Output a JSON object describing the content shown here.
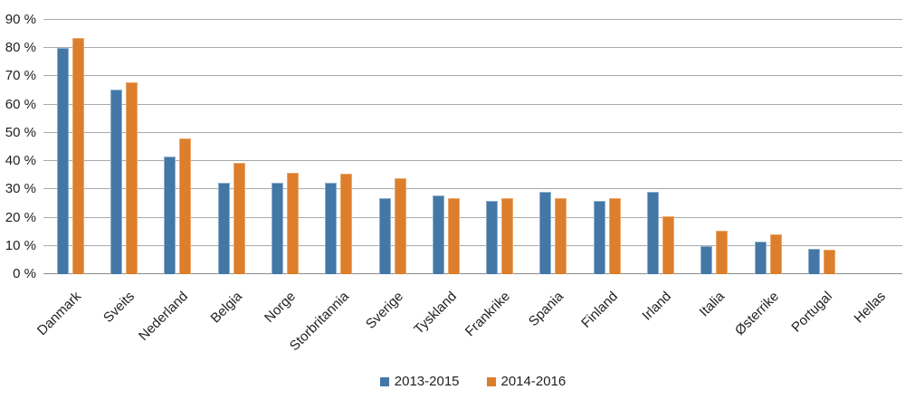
{
  "chart_data": {
    "type": "bar",
    "title": "",
    "xlabel": "",
    "ylabel": "",
    "categories": [
      "Danmark",
      "Sveits",
      "Nederland",
      "Belgia",
      "Norge",
      "Storbritannia",
      "Sverige",
      "Tyskland",
      "Frankrike",
      "Spania",
      "Finland",
      "Irland",
      "Italia",
      "Østerrike",
      "Portugal",
      "Hellas"
    ],
    "series": [
      {
        "name": "2013-2015",
        "color": "#4377A6",
        "border_color": "#8FAFCB",
        "values": [
          80,
          65.5,
          41.5,
          32.5,
          32.5,
          32.5,
          27,
          28,
          26,
          29,
          26,
          29,
          10,
          11.5,
          9,
          0
        ]
      },
      {
        "name": "2014-2016",
        "color": "#DC7E2B",
        "border_color": "#EAA868",
        "values": [
          83.5,
          68,
          48,
          39.5,
          36,
          35.5,
          34,
          27,
          27,
          27,
          27,
          20.5,
          15.5,
          14,
          8.5,
          0
        ]
      }
    ],
    "ylim": [
      0,
      90
    ],
    "y_tick_step": 10,
    "y_ticks": [
      "0 %",
      "10 %",
      "20 %",
      "30 %",
      "40 %",
      "50 %",
      "60 %",
      "70 %",
      "80 %",
      "90 %"
    ],
    "grid": "horizontal",
    "gridline_color": "#A9A9A9",
    "axisline_color": "#8C8C8C",
    "text_color": "#1f1f1f",
    "legend_position": "bottom"
  }
}
